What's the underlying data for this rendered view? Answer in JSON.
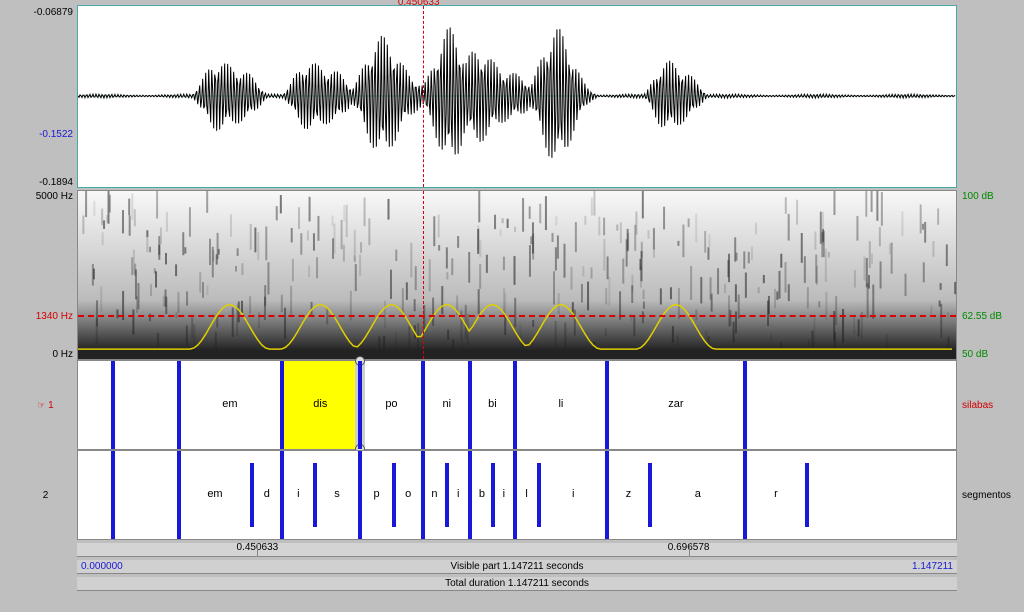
{
  "cursor": {
    "time": "0.450633",
    "pos_pct": 39.3
  },
  "waveform": {
    "y_top": "-0.06879",
    "y_mid": "-0.1522",
    "y_bot": "-0.1894",
    "color_top": "#000000",
    "color_mid": "#1818d8",
    "color_bot": "#000000",
    "stroke": "#000000",
    "border": "#4aa"
  },
  "spectrogram": {
    "freq_top": "5000 Hz",
    "freq_mark": "1340 Hz",
    "freq_bot": "0 Hz",
    "db_top": "100 dB",
    "db_mark": "62.55 dB",
    "db_bot": "50 dB",
    "db_color": "#008800",
    "freq_mark_color": "#d00000",
    "intensity_color": "#e0d000",
    "freq_line_pct": 74
  },
  "tier1": {
    "name": "silabas",
    "index": "1",
    "label_color": "#d00000",
    "selected_idx": 2,
    "boundaries_pct": [
      4.0,
      11.5,
      23.2,
      32.1,
      39.3,
      44.7,
      49.8,
      60.3,
      76.0
    ],
    "segments": [
      {
        "mid": 17.3,
        "label": "em"
      },
      {
        "mid": 27.6,
        "label": "dis"
      },
      {
        "mid": 35.7,
        "label": "po"
      },
      {
        "mid": 42.0,
        "label": "ni"
      },
      {
        "mid": 47.2,
        "label": "bi"
      },
      {
        "mid": 55.0,
        "label": "li"
      },
      {
        "mid": 68.1,
        "label": "zar"
      }
    ]
  },
  "tier2": {
    "name": "segmentos",
    "index": "2",
    "boundaries_pct": [
      4.0,
      11.5,
      19.8,
      23.2,
      27.0,
      32.1,
      36.0,
      39.3,
      42.0,
      44.7,
      47.3,
      49.8,
      52.5,
      60.3,
      65.2,
      76.0,
      83.0
    ],
    "segments": [
      {
        "mid": 15.6,
        "label": "em"
      },
      {
        "mid": 21.5,
        "label": "d"
      },
      {
        "mid": 25.1,
        "label": "i"
      },
      {
        "mid": 29.5,
        "label": "s"
      },
      {
        "mid": 34.0,
        "label": "p"
      },
      {
        "mid": 37.6,
        "label": "o"
      },
      {
        "mid": 40.6,
        "label": "n"
      },
      {
        "mid": 43.3,
        "label": "i"
      },
      {
        "mid": 46.0,
        "label": "b"
      },
      {
        "mid": 48.5,
        "label": "i"
      },
      {
        "mid": 51.1,
        "label": "l"
      },
      {
        "mid": 56.4,
        "label": "i"
      },
      {
        "mid": 62.7,
        "label": "z"
      },
      {
        "mid": 70.6,
        "label": "a"
      },
      {
        "mid": 79.5,
        "label": "r"
      }
    ]
  },
  "timebar": {
    "ticks": [
      {
        "pos_pct": 20.5,
        "label": "0.450633"
      },
      {
        "pos_pct": 69.5,
        "label": "0.696578"
      }
    ],
    "start": "0.000000",
    "start_color": "#1818d8",
    "end": "1.147211",
    "end_color": "#1818d8",
    "visible": "Visible part 1.147211 seconds",
    "total": "Total duration 1.147211 seconds"
  },
  "colors": {
    "bg": "#bfbfbf",
    "boundary": "#1818d8",
    "selection": "#ffff00"
  }
}
